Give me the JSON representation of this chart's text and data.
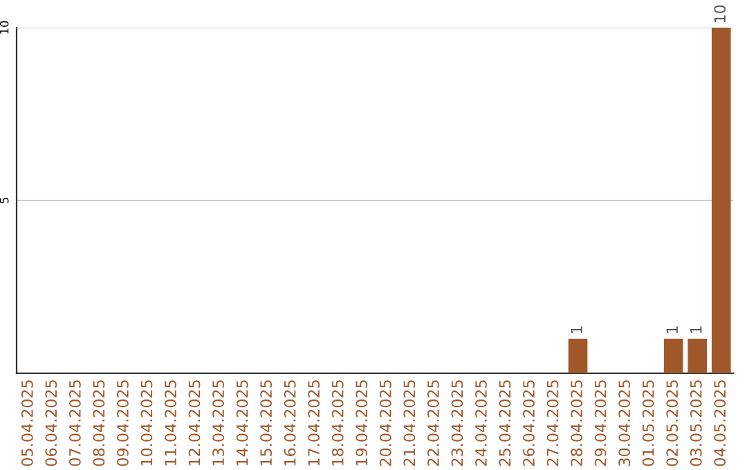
{
  "chart_data": {
    "type": "bar",
    "categories": [
      "05.04.2025",
      "06.04.2025",
      "07.04.2025",
      "08.04.2025",
      "09.04.2025",
      "10.04.2025",
      "11.04.2025",
      "12.04.2025",
      "13.04.2025",
      "14.04.2025",
      "15.04.2025",
      "16.04.2025",
      "17.04.2025",
      "18.04.2025",
      "19.04.2025",
      "20.04.2025",
      "21.04.2025",
      "22.04.2025",
      "23.04.2025",
      "24.04.2025",
      "25.04.2025",
      "26.04.2025",
      "27.04.2025",
      "28.04.2025",
      "29.04.2025",
      "30.04.2025",
      "01.05.2025",
      "02.05.2025",
      "03.05.2025",
      "04.05.2025"
    ],
    "values": [
      0,
      0,
      0,
      0,
      0,
      0,
      0,
      0,
      0,
      0,
      0,
      0,
      0,
      0,
      0,
      0,
      0,
      0,
      0,
      0,
      0,
      0,
      0,
      1,
      0,
      0,
      0,
      1,
      1,
      10
    ],
    "value_labels": [
      null,
      null,
      null,
      null,
      null,
      null,
      null,
      null,
      null,
      null,
      null,
      null,
      null,
      null,
      null,
      null,
      null,
      null,
      null,
      null,
      null,
      null,
      null,
      "1",
      null,
      null,
      null,
      "1",
      "1",
      "10"
    ],
    "color": "#a0582a",
    "ylim": [
      0,
      10
    ],
    "yticks": [
      5,
      10
    ],
    "grid": "y"
  }
}
